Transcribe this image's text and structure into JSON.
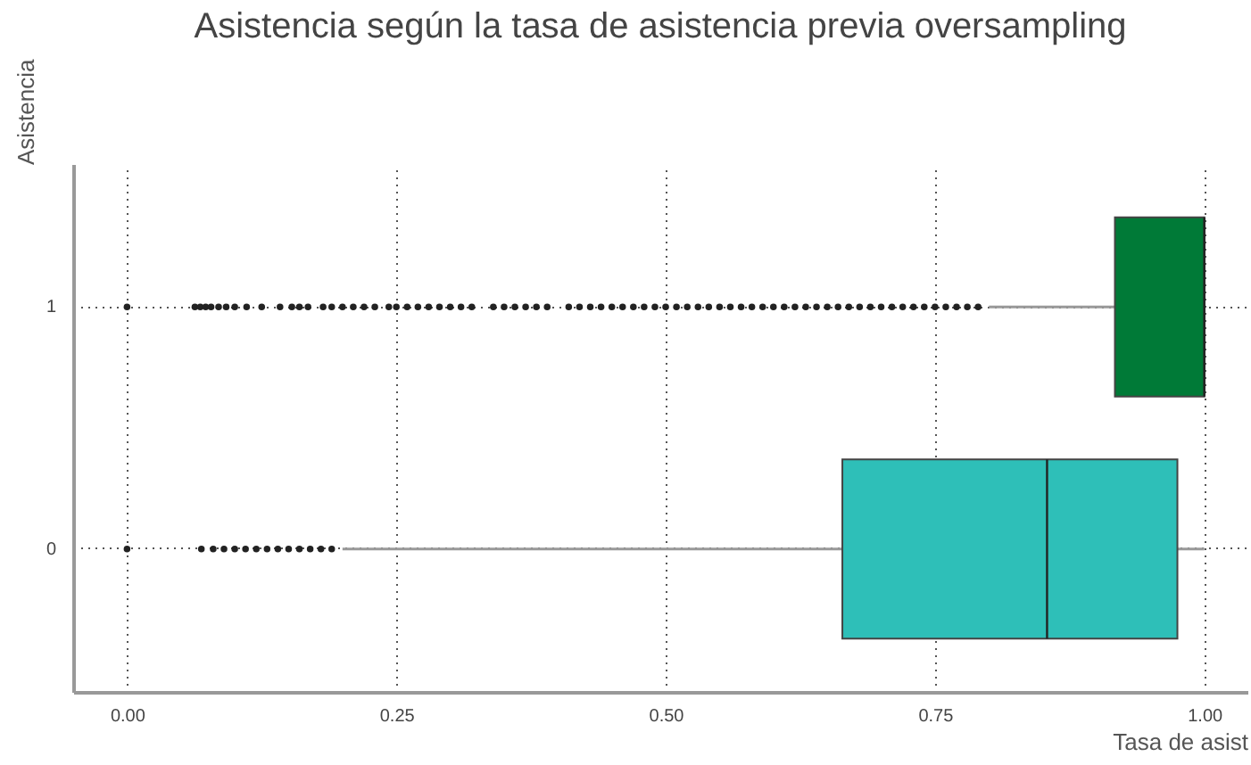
{
  "chart_data": {
    "type": "box",
    "orientation": "horizontal",
    "title": "Asistencia según la tasa de asistencia previa oversampling",
    "xlabel": "Tasa de asist",
    "ylabel": "Asistencia",
    "categories": [
      "1",
      "0"
    ],
    "colors": [
      "#007a37",
      "#2ebfb8"
    ],
    "boxes": [
      {
        "low": 0.8,
        "q1": 0.917,
        "median": 1.0,
        "q3": 1.0,
        "high": 1.0,
        "outliers": [
          0,
          0.063,
          0.068,
          0.073,
          0.078,
          0.085,
          0.092,
          0.1,
          0.111,
          0.125,
          0.142,
          0.153,
          0.16,
          0.168,
          0.182,
          0.19,
          0.2,
          0.21,
          0.22,
          0.23,
          0.243,
          0.25,
          0.26,
          0.27,
          0.28,
          0.29,
          0.3,
          0.31,
          0.32,
          0.34,
          0.35,
          0.36,
          0.37,
          0.38,
          0.39,
          0.41,
          0.42,
          0.43,
          0.44,
          0.45,
          0.46,
          0.47,
          0.48,
          0.49,
          0.5,
          0.51,
          0.52,
          0.53,
          0.54,
          0.55,
          0.56,
          0.57,
          0.58,
          0.59,
          0.6,
          0.61,
          0.62,
          0.63,
          0.64,
          0.65,
          0.66,
          0.67,
          0.68,
          0.69,
          0.7,
          0.71,
          0.72,
          0.73,
          0.74,
          0.75,
          0.76,
          0.77,
          0.78,
          0.79
        ]
      },
      {
        "low": 0.2,
        "q1": 0.664,
        "median": 0.854,
        "q3": 0.975,
        "high": 1.0,
        "outliers": [
          0,
          0.069,
          0.08,
          0.09,
          0.1,
          0.11,
          0.12,
          0.13,
          0.14,
          0.15,
          0.16,
          0.17,
          0.18,
          0.19
        ]
      }
    ],
    "xlim": [
      -0.05,
      1.04
    ],
    "xticks": [
      {
        "value": 0,
        "label": "0.00"
      },
      {
        "value": 0.25,
        "label": "0.25"
      },
      {
        "value": 0.5,
        "label": "0.50"
      },
      {
        "value": 0.75,
        "label": "0.75"
      },
      {
        "value": 1,
        "label": "1.00"
      }
    ],
    "grid": true,
    "legend": false
  }
}
